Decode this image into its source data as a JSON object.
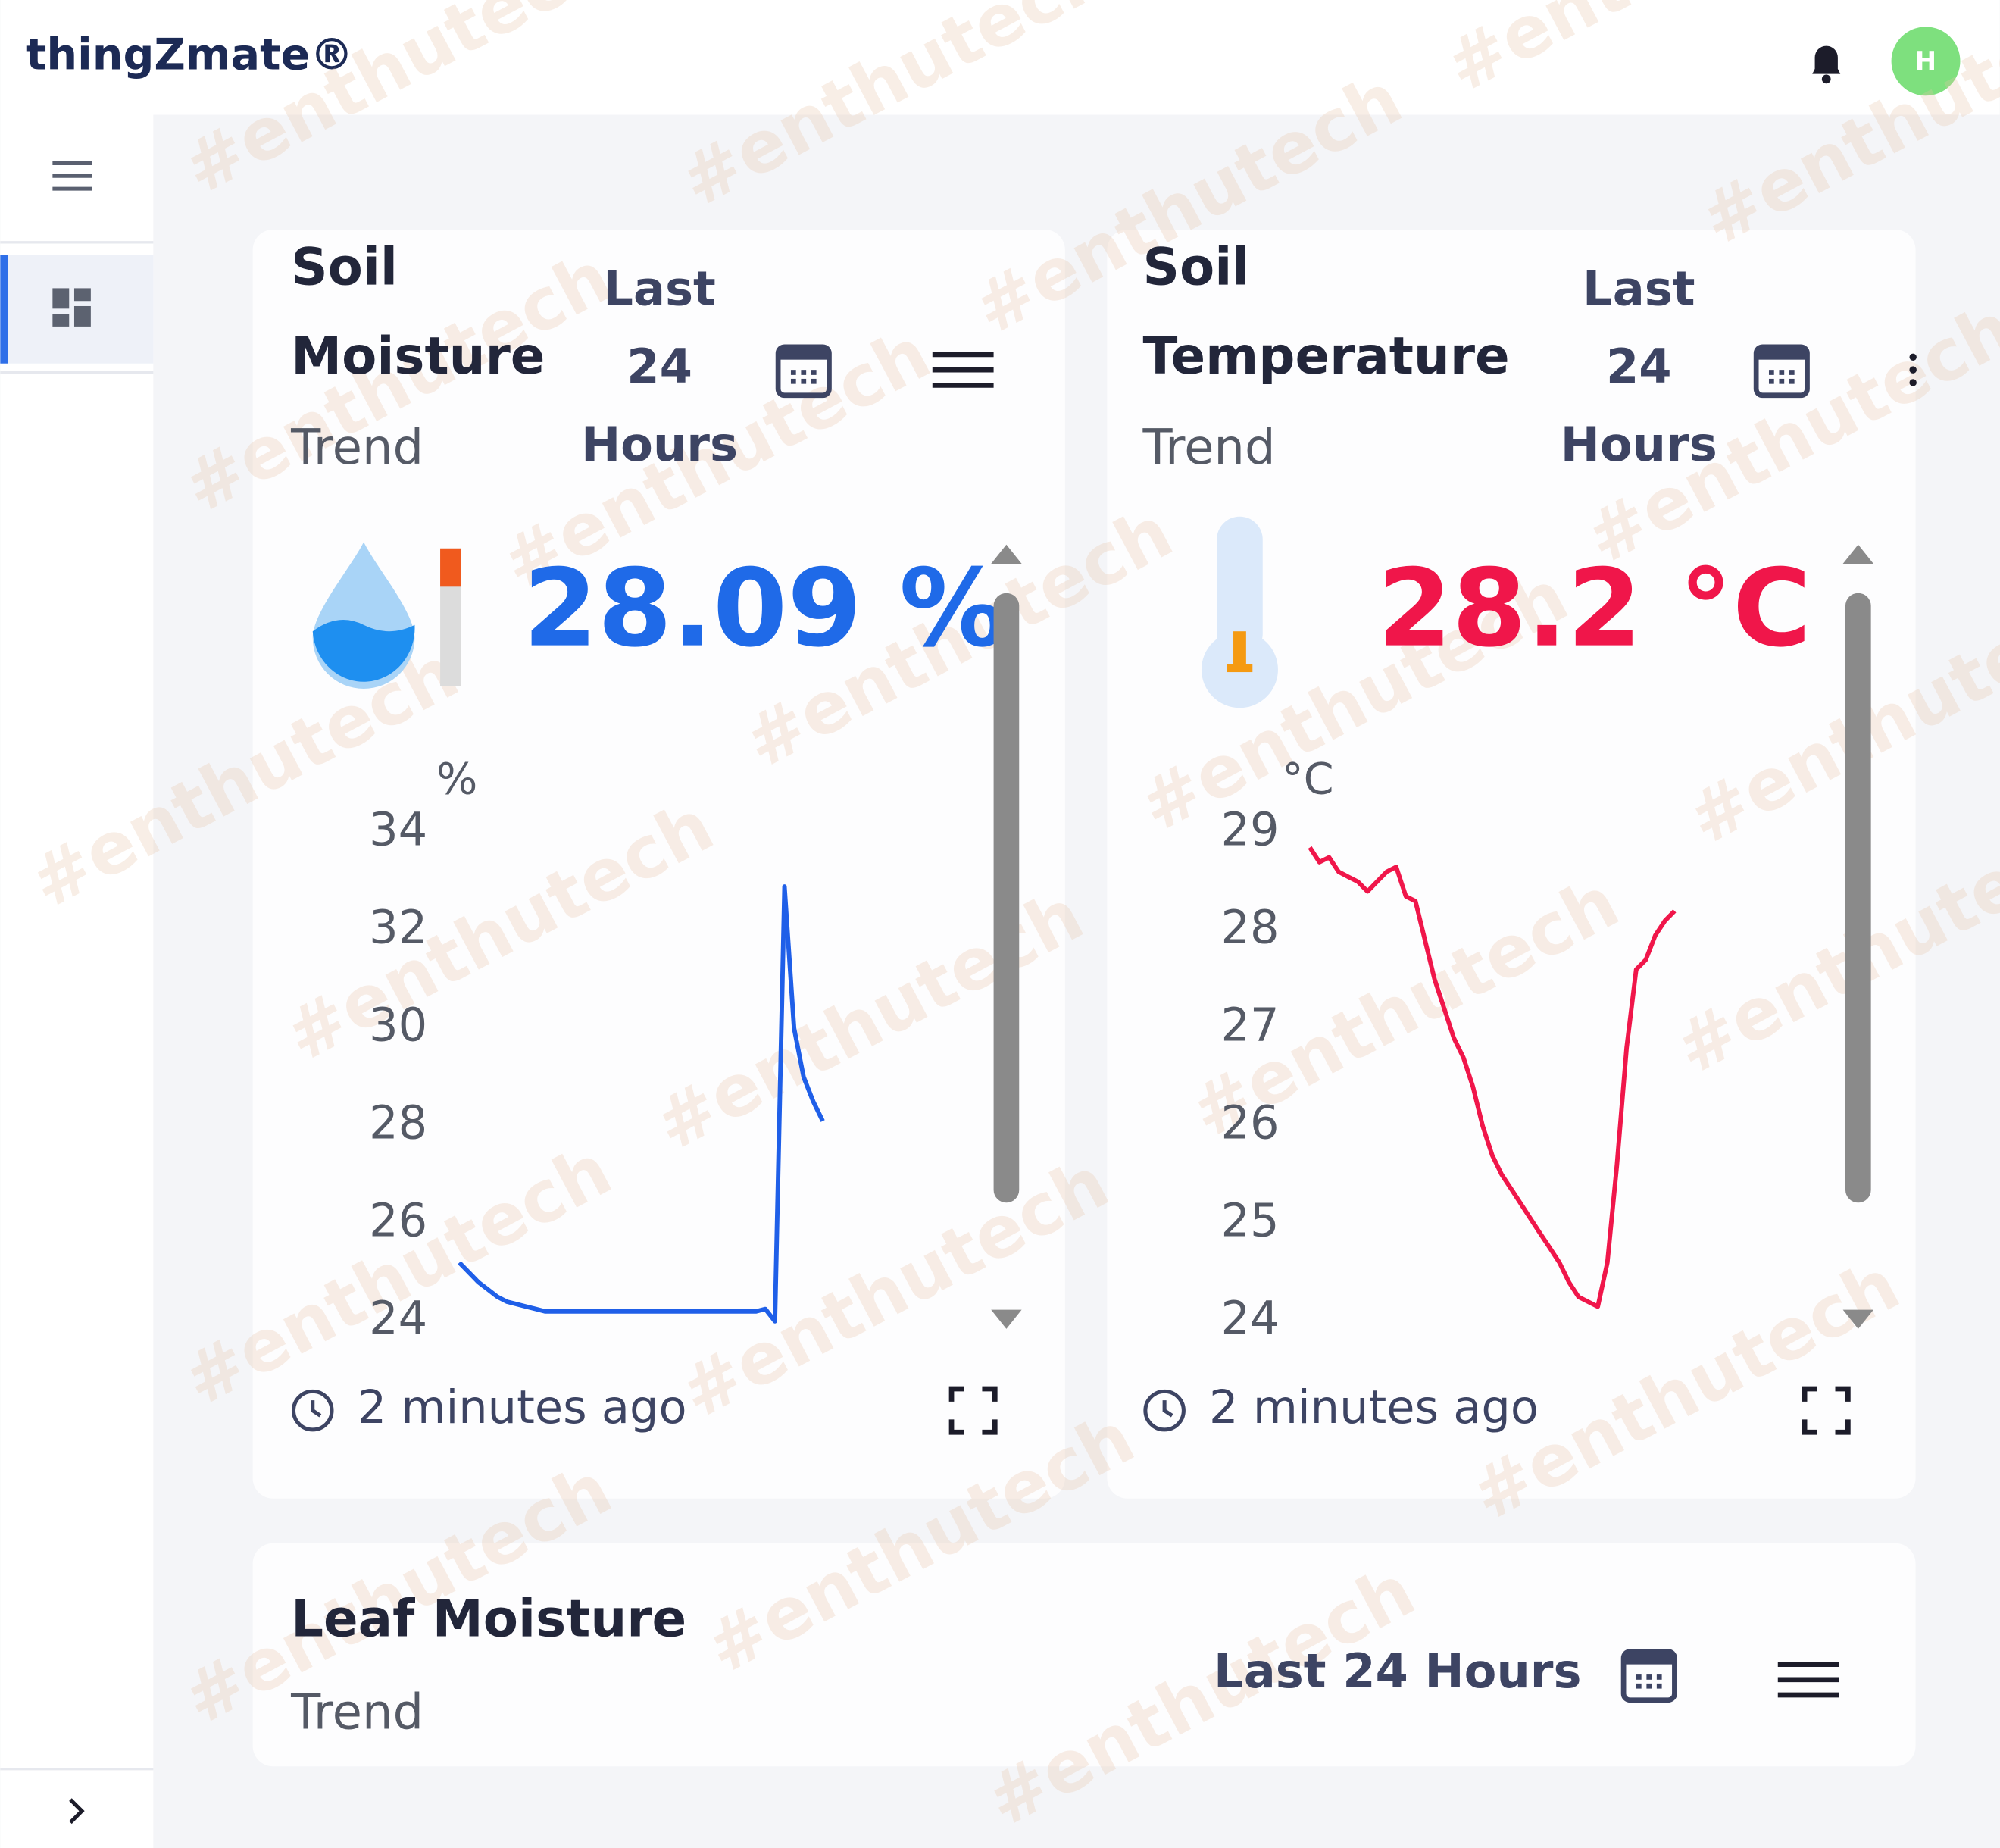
{
  "header": {
    "logo": "thingZmate®",
    "avatar": "H"
  },
  "watermark": "#enthutech",
  "cards": [
    {
      "title_lines": [
        "Soil",
        "Moisture"
      ],
      "subtitle": "Trend",
      "period_lines": [
        "Last",
        "24",
        "Hours"
      ],
      "reading": "28.09 %",
      "updated": "2 minutes ago",
      "chart_data": {
        "type": "line",
        "y_unit": "%",
        "color": "#1f5fe8",
        "ylim": [
          24,
          34
        ],
        "yticks": [
          24,
          26,
          28,
          30,
          32,
          34
        ],
        "values": [
          25.2,
          25.0,
          24.8,
          24.65,
          24.5,
          24.4,
          24.35,
          24.3,
          24.25,
          24.2,
          24.2,
          24.2,
          24.2,
          24.2,
          24.2,
          24.2,
          24.2,
          24.2,
          24.2,
          24.2,
          24.2,
          24.2,
          24.2,
          24.2,
          24.2,
          24.2,
          24.2,
          24.2,
          24.2,
          24.2,
          24.2,
          24.2,
          24.25,
          24.0,
          32.9,
          30.0,
          29.0,
          28.5,
          28.1
        ]
      }
    },
    {
      "title_lines": [
        "Soil",
        "Temperature"
      ],
      "subtitle": "Trend",
      "period_lines": [
        "Last",
        "24",
        "Hours"
      ],
      "reading": "28.2 °C",
      "updated": "2 minutes ago",
      "chart_data": {
        "type": "line",
        "y_unit": "°C",
        "color": "#f0164a",
        "ylim": [
          24,
          29
        ],
        "yticks": [
          24,
          25,
          26,
          27,
          28,
          29
        ],
        "values": [
          28.85,
          28.7,
          28.75,
          28.6,
          28.55,
          28.5,
          28.4,
          28.5,
          28.6,
          28.65,
          28.35,
          28.3,
          27.9,
          27.5,
          27.2,
          26.9,
          26.7,
          26.4,
          26.0,
          25.7,
          25.5,
          25.35,
          25.2,
          25.05,
          24.9,
          24.75,
          24.6,
          24.4,
          24.25,
          24.2,
          24.15,
          24.6,
          25.6,
          26.8,
          27.6,
          27.7,
          27.95,
          28.1,
          28.2
        ]
      }
    },
    {
      "title_lines": [
        "Leaf Moisture"
      ],
      "subtitle": "Trend",
      "period_lines": [
        "Last 24 Hours"
      ]
    }
  ]
}
